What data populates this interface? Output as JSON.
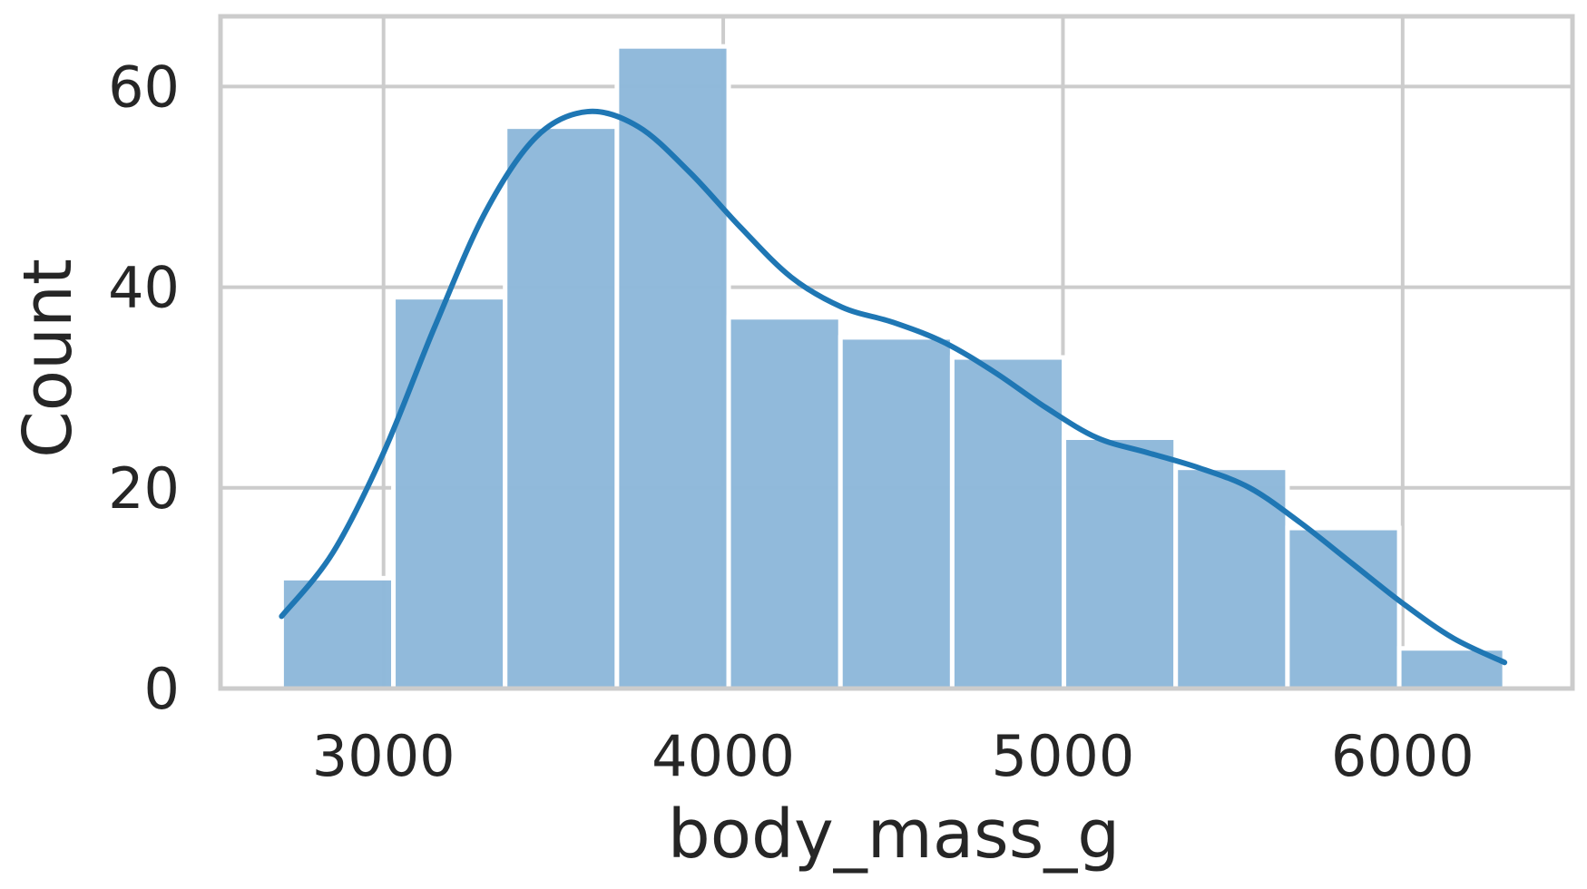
{
  "chart_data": {
    "type": "bar",
    "subtype": "histogram_with_kde",
    "xlabel": "body_mass_g",
    "ylabel": "Count",
    "xlim": [
      2520,
      6500
    ],
    "ylim": [
      0,
      67
    ],
    "x_ticks": [
      3000,
      4000,
      5000,
      6000
    ],
    "y_ticks": [
      0,
      20,
      40,
      60
    ],
    "grid": true,
    "bar_color": "#8fb9da",
    "kde_color": "#1f77b4",
    "grid_color": "#cccccc",
    "bins": [
      {
        "x0": 2700,
        "x1": 3029,
        "count": 11
      },
      {
        "x0": 3029,
        "x1": 3358,
        "count": 39
      },
      {
        "x0": 3358,
        "x1": 3687,
        "count": 56
      },
      {
        "x0": 3687,
        "x1": 4016,
        "count": 64
      },
      {
        "x0": 4016,
        "x1": 4345,
        "count": 37
      },
      {
        "x0": 4345,
        "x1": 4674,
        "count": 35
      },
      {
        "x0": 4674,
        "x1": 5003,
        "count": 33
      },
      {
        "x0": 5003,
        "x1": 5332,
        "count": 25
      },
      {
        "x0": 5332,
        "x1": 5661,
        "count": 22
      },
      {
        "x0": 5661,
        "x1": 5990,
        "count": 16
      },
      {
        "x0": 5990,
        "x1": 6300,
        "count": 4
      }
    ],
    "kde": {
      "x": [
        2700,
        2850,
        3000,
        3150,
        3300,
        3450,
        3600,
        3750,
        3900,
        4050,
        4200,
        4350,
        4500,
        4650,
        4800,
        4950,
        5100,
        5250,
        5400,
        5550,
        5700,
        5850,
        6000,
        6150,
        6300
      ],
      "y": [
        7.2,
        13.5,
        23.5,
        36,
        47.5,
        55,
        57.5,
        56,
        51.5,
        46,
        41,
        38,
        36.5,
        34.5,
        31.5,
        28,
        25,
        23.5,
        22,
        20,
        16.5,
        12.5,
        8.5,
        5,
        2.6
      ]
    }
  }
}
